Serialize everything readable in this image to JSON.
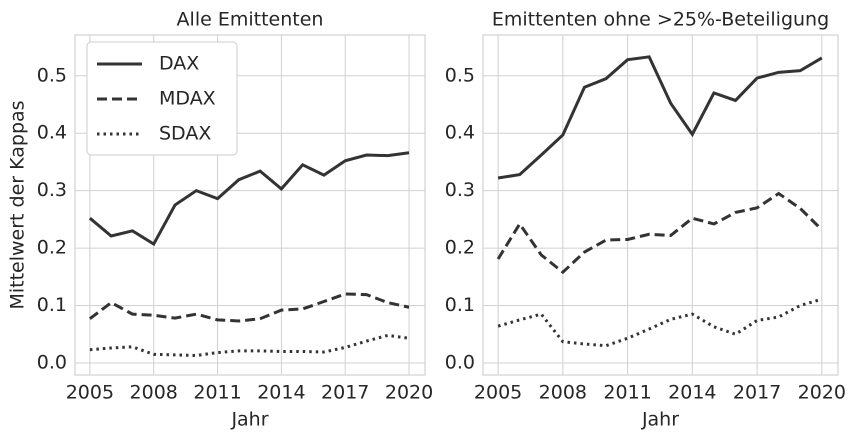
{
  "chart_data": [
    {
      "type": "line",
      "title": "Alle Emittenten",
      "xlabel": "Jahr",
      "ylabel": "Mittelwert der Kappas",
      "x": [
        2005,
        2006,
        2007,
        2008,
        2009,
        2010,
        2011,
        2012,
        2013,
        2014,
        2015,
        2016,
        2017,
        2018,
        2019,
        2020
      ],
      "series": [
        {
          "name": "DAX",
          "color": "#333333",
          "dash": "solid",
          "values": [
            0.252,
            0.221,
            0.23,
            0.207,
            0.275,
            0.3,
            0.286,
            0.319,
            0.334,
            0.303,
            0.345,
            0.327,
            0.352,
            0.362,
            0.361,
            0.366
          ]
        },
        {
          "name": "MDAX",
          "color": "#333333",
          "dash": "dashed",
          "values": [
            0.077,
            0.105,
            0.085,
            0.083,
            0.078,
            0.085,
            0.075,
            0.073,
            0.077,
            0.092,
            0.094,
            0.107,
            0.12,
            0.119,
            0.105,
            0.097
          ]
        },
        {
          "name": "SDAX",
          "color": "#333333",
          "dash": "dotted",
          "values": [
            0.023,
            0.026,
            0.028,
            0.015,
            0.014,
            0.013,
            0.018,
            0.021,
            0.021,
            0.02,
            0.02,
            0.019,
            0.027,
            0.038,
            0.048,
            0.043
          ]
        }
      ],
      "xlim": [
        2004.3,
        2020.75
      ],
      "xticks": [
        2005,
        2008,
        2011,
        2014,
        2017,
        2020
      ],
      "ylim": [
        -0.021,
        0.571
      ],
      "yticks": [
        {
          "value": 0,
          "label": "0.0"
        },
        0.1,
        0.2,
        0.3,
        0.4,
        0.5
      ],
      "grid": true,
      "legend": "upper-left"
    },
    {
      "type": "line",
      "title": "Emittenten ohne >25%-Beteiligung",
      "xlabel": "Jahr",
      "x": [
        2005,
        2006,
        2007,
        2008,
        2009,
        2010,
        2011,
        2012,
        2013,
        2014,
        2015,
        2016,
        2017,
        2018,
        2019,
        2020
      ],
      "series": [
        {
          "color": "#333333",
          "dash": "solid",
          "values": [
            0.322,
            0.328,
            0.362,
            0.397,
            0.48,
            0.495,
            0.528,
            0.533,
            0.452,
            0.398,
            0.47,
            0.457,
            0.496,
            0.506,
            0.509,
            0.531
          ]
        },
        {
          "color": "#333333",
          "dash": "dashed",
          "values": [
            0.181,
            0.242,
            0.188,
            0.158,
            0.193,
            0.214,
            0.215,
            0.224,
            0.222,
            0.252,
            0.242,
            0.262,
            0.27,
            0.295,
            0.269,
            0.232
          ]
        },
        {
          "color": "#333333",
          "dash": "dotted",
          "values": [
            0.064,
            0.075,
            0.085,
            0.037,
            0.033,
            0.03,
            0.043,
            0.059,
            0.076,
            0.085,
            0.063,
            0.05,
            0.074,
            0.08,
            0.1,
            0.111
          ]
        }
      ],
      "xlim": [
        2004.3,
        2020.75
      ],
      "xticks": [
        2005,
        2008,
        2011,
        2014,
        2017,
        2020
      ],
      "ylim": [
        -0.021,
        0.571
      ],
      "yticks": [
        {
          "value": 0,
          "label": "0.0"
        },
        0.1,
        0.2,
        0.3,
        0.4,
        0.5
      ],
      "grid": true
    }
  ]
}
